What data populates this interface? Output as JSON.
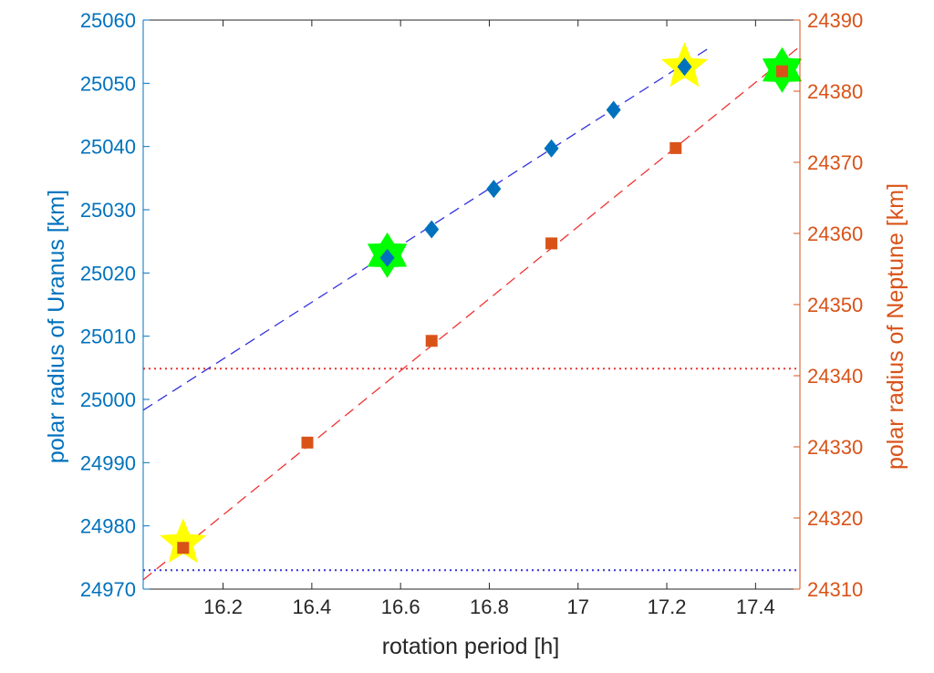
{
  "chart_data": {
    "type": "scatter",
    "xlabel": "rotation period [h]",
    "ylabel_left": "polar radius of Uranus [km]",
    "ylabel_right": "polar radius of Neptune [km]",
    "xlim": [
      16.02,
      17.5
    ],
    "ylim_left": [
      24970,
      25060
    ],
    "ylim_right": [
      24310,
      24390
    ],
    "x_ticks": [
      "16.2",
      "16.4",
      "16.6",
      "16.8",
      "17",
      "17.2",
      "17.4"
    ],
    "y_left_ticks": [
      "24970",
      "24980",
      "24990",
      "25000",
      "25010",
      "25020",
      "25030",
      "25040",
      "25050",
      "25060"
    ],
    "y_right_ticks": [
      "24310",
      "24320",
      "24330",
      "24340",
      "24350",
      "24360",
      "24370",
      "24380",
      "24390"
    ],
    "grid": false,
    "colors": {
      "left_axis": "#0072BD",
      "right_axis": "#D95319",
      "uranus_fit": "#3333dd",
      "neptune_fit": "#ee3333",
      "uranus_marker": "#0072BD",
      "neptune_marker": "#D95319",
      "yellow_star": "#ffff00",
      "green_star": "#00ff00",
      "uranus_ref_line": "#3333dd",
      "neptune_ref_line": "#ee3333"
    },
    "series": [
      {
        "axis": "left",
        "marker": "diamond",
        "x": [
          16.57,
          16.67,
          16.81,
          16.94,
          17.08,
          17.24
        ],
        "y": [
          25022.4,
          25026.9,
          25033.3,
          25039.7,
          25045.8,
          25052.6
        ]
      },
      {
        "axis": "right",
        "marker": "square",
        "x": [
          16.11,
          16.39,
          16.67,
          16.94,
          17.22,
          17.46
        ],
        "y": [
          24315.8,
          24330.6,
          24344.9,
          24358.6,
          24372.0,
          24382.8
        ]
      }
    ],
    "fit_lines": [
      {
        "axis": "left",
        "style": "dashed",
        "x": [
          16.02,
          17.3
        ],
        "y": [
          24998.3,
          25055.8
        ]
      },
      {
        "axis": "right",
        "style": "dashed",
        "x": [
          16.02,
          17.5
        ],
        "y": [
          24311.3,
          24386.3
        ]
      }
    ],
    "reference_lines": [
      {
        "axis": "left",
        "style": "dotted",
        "y": 24973
      },
      {
        "axis": "right",
        "style": "dotted",
        "y": 24341
      }
    ],
    "highlights": [
      {
        "shape": "star-5",
        "color": "yellow",
        "x": 16.11,
        "y": 24316.5,
        "axis": "right"
      },
      {
        "shape": "star-5",
        "color": "yellow",
        "x": 17.24,
        "y": 25052.6,
        "axis": "left"
      },
      {
        "shape": "star-6",
        "color": "green",
        "x": 16.57,
        "y": 25022.8,
        "axis": "left"
      },
      {
        "shape": "star-6",
        "color": "green",
        "x": 17.46,
        "y": 25052.1,
        "axis": "left"
      }
    ]
  }
}
